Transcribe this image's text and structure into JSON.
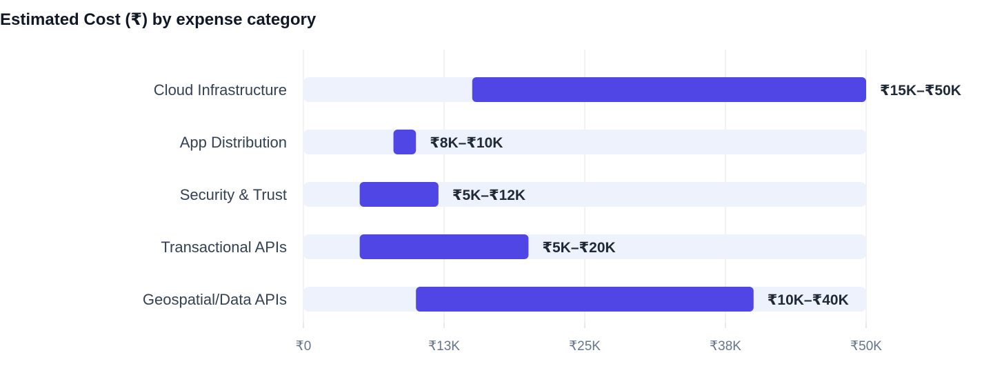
{
  "chart_data": {
    "type": "bar",
    "orientation": "horizontal-range",
    "title": "Estimated Cost (₹) by expense category",
    "xlim": [
      0,
      50000
    ],
    "ticks": [
      {
        "value": 0,
        "label": "₹0"
      },
      {
        "value": 12500,
        "label": "₹13K"
      },
      {
        "value": 25000,
        "label": "₹25K"
      },
      {
        "value": 37500,
        "label": "₹38K"
      },
      {
        "value": 50000,
        "label": "₹50K"
      }
    ],
    "grid": true,
    "categories": [
      "Cloud Infrastructure",
      "App Distribution",
      "Security & Trust",
      "Transactional APIs",
      "Geospatial/Data APIs"
    ],
    "ranges": [
      {
        "low": 15000,
        "high": 50000,
        "label": "₹15K–₹50K"
      },
      {
        "low": 8000,
        "high": 10000,
        "label": "₹8K–₹10K"
      },
      {
        "low": 5000,
        "high": 12000,
        "label": "₹5K–₹12K"
      },
      {
        "low": 5000,
        "high": 20000,
        "label": "₹5K–₹20K"
      },
      {
        "low": 10000,
        "high": 40000,
        "label": "₹10K–₹40K"
      }
    ],
    "colors": {
      "bar": "#4f46e5",
      "track": "#eef2fd",
      "grid": "#e2e5ea"
    }
  }
}
